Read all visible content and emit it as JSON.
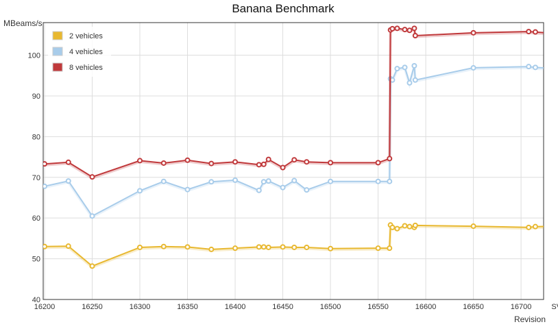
{
  "chart_data": {
    "type": "line",
    "title": "Banana Benchmark",
    "ylabel": "MBeams/s",
    "xlabel": "Revision",
    "xlim": [
      16200,
      16710
    ],
    "ylim": [
      40,
      108
    ],
    "y_ticks": [
      40,
      50,
      60,
      70,
      80,
      90,
      100
    ],
    "x_tick_values": [
      16200,
      16250,
      16300,
      16350,
      16400,
      16450,
      16500,
      16550,
      16600,
      16650,
      16700,
      16740
    ],
    "x_tick_labels": [
      "16200",
      "16250",
      "16300",
      "16350",
      "16400",
      "16450",
      "16500",
      "16550",
      "16600",
      "16650",
      "16700",
      "SVN"
    ],
    "grid": true,
    "legend_position": "top-left",
    "series": [
      {
        "name": "2 vehicles",
        "color": "#E8B830",
        "x": [
          16200,
          16225,
          16250,
          16300,
          16325,
          16350,
          16375,
          16400,
          16425,
          16430,
          16435,
          16450,
          16462,
          16475,
          16500,
          16550,
          16562,
          16563,
          16565,
          16570,
          16578,
          16583,
          16588,
          16589,
          16650,
          16708,
          16715,
          16770
        ],
        "y": [
          53,
          53.1,
          48.2,
          52.8,
          53.0,
          52.9,
          52.3,
          52.6,
          52.9,
          52.9,
          52.8,
          52.9,
          52.8,
          52.8,
          52.5,
          52.6,
          52.6,
          58.3,
          57.7,
          57.4,
          58.1,
          57.9,
          57.7,
          58.2,
          58.0,
          57.7,
          57.9,
          58.1
        ]
      },
      {
        "name": "4 vehicles",
        "color": "#A8CCEA",
        "x": [
          16200,
          16225,
          16250,
          16300,
          16325,
          16350,
          16375,
          16400,
          16425,
          16430,
          16435,
          16450,
          16462,
          16475,
          16500,
          16550,
          16562,
          16563,
          16565,
          16570,
          16578,
          16583,
          16588,
          16589,
          16650,
          16708,
          16715,
          16770
        ],
        "y": [
          67.8,
          69.1,
          60.5,
          66.7,
          69.0,
          67.0,
          68.9,
          69.3,
          66.8,
          68.9,
          69.1,
          67.5,
          69.2,
          66.9,
          69.0,
          69.0,
          69.0,
          94.2,
          93.9,
          96.7,
          97.0,
          93.2,
          97.4,
          93.9,
          96.9,
          97.2,
          97.0,
          96.3
        ]
      },
      {
        "name": "8 vehicles",
        "color": "#C0393B",
        "x": [
          16200,
          16225,
          16250,
          16300,
          16325,
          16350,
          16375,
          16400,
          16425,
          16430,
          16435,
          16450,
          16462,
          16475,
          16500,
          16550,
          16562,
          16563,
          16565,
          16570,
          16578,
          16583,
          16588,
          16589,
          16650,
          16708,
          16715,
          16770
        ],
        "y": [
          73.3,
          73.7,
          70.1,
          74.1,
          73.5,
          74.2,
          73.4,
          73.8,
          73.1,
          73.2,
          74.4,
          72.4,
          74.3,
          73.8,
          73.6,
          73.6,
          74.6,
          106.2,
          106.5,
          106.6,
          106.3,
          106.1,
          106.6,
          104.8,
          105.5,
          105.8,
          105.7,
          104.7
        ]
      }
    ]
  }
}
